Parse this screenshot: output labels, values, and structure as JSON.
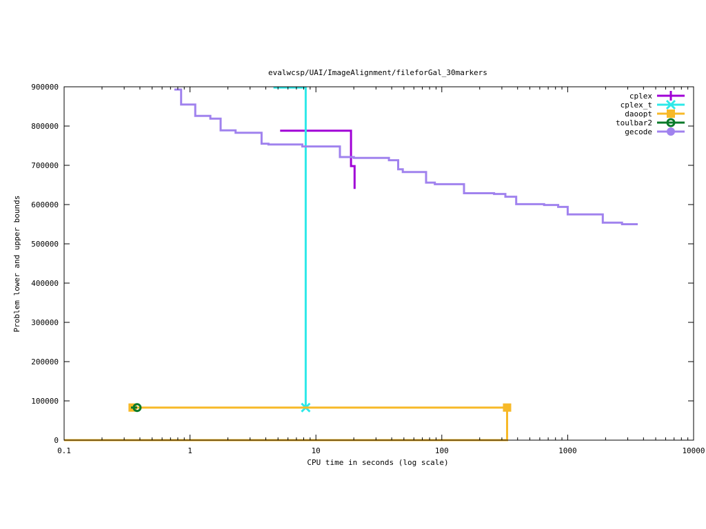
{
  "chart_data": {
    "type": "line",
    "title": "evalwcsp/UAI/ImageAlignment/fileforGal_30markers",
    "xlabel": "CPU time in seconds (log scale)",
    "ylabel": "Problem lower and upper bounds",
    "xscale": "log",
    "xlim": [
      0.1,
      10000
    ],
    "ylim": [
      0,
      900000
    ],
    "x_ticks": [
      0.1,
      1,
      10,
      100,
      1000,
      10000
    ],
    "x_tick_labels": [
      "0.1",
      "1",
      "10",
      "100",
      "1000",
      "10000"
    ],
    "y_ticks": [
      0,
      100000,
      200000,
      300000,
      400000,
      500000,
      600000,
      700000,
      800000,
      900000
    ],
    "y_tick_labels": [
      "0",
      "100000",
      "200000",
      "300000",
      "400000",
      "500000",
      "600000",
      "700000",
      "800000",
      "900000"
    ],
    "grid": false,
    "legend_position": "top-right",
    "series": [
      {
        "name": "cplex",
        "color": "#a000d6",
        "marker": "plus",
        "step": true,
        "points": [
          [
            5.2,
            788000
          ],
          [
            19.0,
            788000
          ],
          [
            19.0,
            698000
          ],
          [
            20.3,
            698000
          ],
          [
            20.3,
            640000
          ]
        ],
        "marker_points": []
      },
      {
        "name": "cplex_t",
        "color": "#2ee8e8",
        "marker": "cross",
        "step": true,
        "points": [
          [
            4.6,
            898000
          ],
          [
            8.3,
            898000
          ],
          [
            8.3,
            83000
          ]
        ],
        "marker_points": [
          [
            8.3,
            83000
          ]
        ]
      },
      {
        "name": "daoopt",
        "color": "#f7b928",
        "marker": "square",
        "step": true,
        "points": [
          [
            0.1,
            0
          ],
          [
            330,
            0
          ],
          [
            330,
            83000
          ],
          [
            0.35,
            83000
          ]
        ],
        "marker_points": [
          [
            0.35,
            83000
          ],
          [
            330,
            83000
          ]
        ]
      },
      {
        "name": "toulbar2",
        "color": "#0a7a2a",
        "marker": "circle-ring",
        "step": true,
        "points": [
          [
            0.34,
            83000
          ],
          [
            0.38,
            83000
          ]
        ],
        "marker_points": [
          [
            0.38,
            83000
          ]
        ]
      },
      {
        "name": "gecode",
        "color": "#a082ee",
        "marker": "dot",
        "step": true,
        "points": [
          [
            0.75,
            893000
          ],
          [
            0.85,
            893000
          ],
          [
            0.85,
            855000
          ],
          [
            1.1,
            855000
          ],
          [
            1.1,
            826000
          ],
          [
            1.45,
            826000
          ],
          [
            1.45,
            819000
          ],
          [
            1.75,
            819000
          ],
          [
            1.75,
            789000
          ],
          [
            2.3,
            789000
          ],
          [
            2.3,
            783000
          ],
          [
            3.7,
            783000
          ],
          [
            3.7,
            755000
          ],
          [
            4.2,
            755000
          ],
          [
            4.2,
            753000
          ],
          [
            7.8,
            753000
          ],
          [
            7.8,
            748000
          ],
          [
            15.5,
            748000
          ],
          [
            15.5,
            721000
          ],
          [
            20,
            721000
          ],
          [
            20,
            719000
          ],
          [
            38,
            719000
          ],
          [
            38,
            713000
          ],
          [
            45,
            713000
          ],
          [
            45,
            690000
          ],
          [
            49,
            690000
          ],
          [
            49,
            683000
          ],
          [
            75,
            683000
          ],
          [
            75,
            656000
          ],
          [
            88,
            656000
          ],
          [
            88,
            652000
          ],
          [
            150,
            652000
          ],
          [
            150,
            629000
          ],
          [
            260,
            629000
          ],
          [
            260,
            627000
          ],
          [
            320,
            627000
          ],
          [
            320,
            620000
          ],
          [
            390,
            620000
          ],
          [
            390,
            601000
          ],
          [
            650,
            601000
          ],
          [
            650,
            599000
          ],
          [
            840,
            599000
          ],
          [
            840,
            594000
          ],
          [
            1000,
            594000
          ],
          [
            1000,
            575000
          ],
          [
            1900,
            575000
          ],
          [
            1900,
            554000
          ],
          [
            2700,
            554000
          ],
          [
            2700,
            550000
          ],
          [
            3600,
            550000
          ]
        ],
        "marker_points": []
      }
    ]
  }
}
